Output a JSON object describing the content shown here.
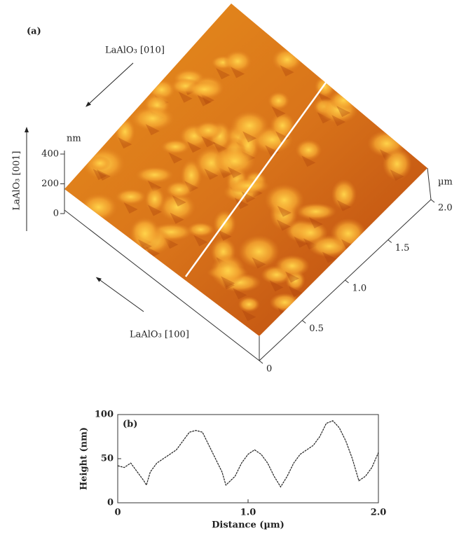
{
  "figure_a": {
    "label": "(a)",
    "annotations": [
      "LaAlO₃ [010]",
      "LaAlO₃ [001]",
      "LaAlO₃ [100]"
    ],
    "z_unit": "nm",
    "zticks": [
      0,
      200,
      400
    ],
    "plane_unit": "µm",
    "plane_ticks": [
      0,
      0.5,
      {
        "value": 1,
        "label": "1.0"
      },
      1.5,
      {
        "value": 2,
        "label": "2.0"
      }
    ]
  },
  "chart_data": {
    "type": "line",
    "annotation": "(b)",
    "xlabel": "Distance  (µm)",
    "ylabel": "Height  (nm)",
    "x": [
      0,
      0.05,
      0.1,
      0.15,
      0.2,
      0.22,
      0.25,
      0.3,
      0.35,
      0.4,
      0.45,
      0.5,
      0.55,
      0.6,
      0.65,
      0.7,
      0.75,
      0.8,
      0.83,
      0.9,
      0.95,
      1.0,
      1.05,
      1.1,
      1.15,
      1.2,
      1.25,
      1.3,
      1.35,
      1.4,
      1.45,
      1.5,
      1.55,
      1.6,
      1.65,
      1.7,
      1.75,
      1.8,
      1.85,
      1.9,
      1.95,
      2.0
    ],
    "values": [
      42,
      40,
      45,
      35,
      25,
      20,
      35,
      45,
      50,
      55,
      60,
      70,
      80,
      82,
      80,
      65,
      50,
      35,
      20,
      30,
      45,
      55,
      60,
      55,
      45,
      30,
      18,
      30,
      45,
      55,
      60,
      65,
      75,
      90,
      93,
      85,
      70,
      50,
      25,
      30,
      40,
      57
    ],
    "color": "#222222",
    "xlim": [
      0,
      2
    ],
    "xticks": [
      0,
      {
        "value": 1,
        "label": "1.0"
      },
      {
        "value": 2,
        "label": "2.0"
      }
    ],
    "ylim": [
      0,
      100
    ],
    "yticks": [
      0,
      50,
      100
    ]
  }
}
